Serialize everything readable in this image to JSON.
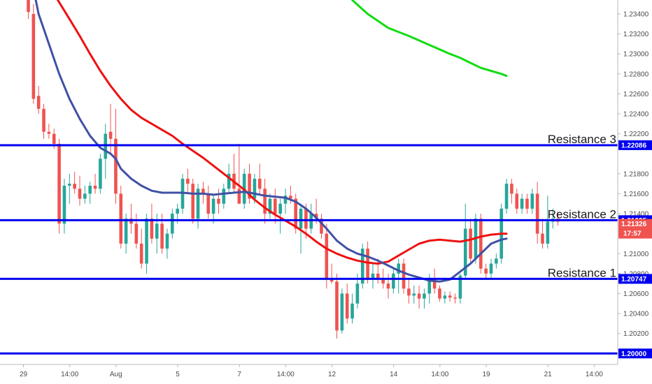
{
  "chart_data": {
    "type": "candlestick",
    "symbol_pair_precision": 5,
    "y_axis_ticks": [
      "1.23400",
      "1.23200",
      "1.23000",
      "1.22800",
      "1.22600",
      "1.22400",
      "1.22200",
      "1.21800",
      "1.21600",
      "1.21400",
      "1.21000",
      "1.20800",
      "1.20600",
      "1.20400",
      "1.20200"
    ],
    "y_axis_tick_values": [
      1.234,
      1.232,
      1.23,
      1.228,
      1.226,
      1.224,
      1.222,
      1.218,
      1.216,
      1.214,
      1.21,
      1.208,
      1.206,
      1.204,
      1.202
    ],
    "ylim": [
      1.1989,
      1.2354
    ],
    "x_axis_ticks": [
      {
        "label": "29",
        "bar": 0
      },
      {
        "label": "14:00",
        "bar": 9
      },
      {
        "label": "Aug",
        "bar": 18
      },
      {
        "label": "5",
        "bar": 30
      },
      {
        "label": "7",
        "bar": 42
      },
      {
        "label": "14:00",
        "bar": 51
      },
      {
        "label": "12",
        "bar": 60
      },
      {
        "label": "14",
        "bar": 72
      },
      {
        "label": "14:00",
        "bar": 81
      },
      {
        "label": "19",
        "bar": 90
      },
      {
        "label": "21",
        "bar": 102
      },
      {
        "label": "14:00",
        "bar": 111
      }
    ],
    "horizontal_levels": [
      {
        "name": "Resistance 3",
        "value": 1.22086,
        "badge": "1.22086"
      },
      {
        "name": "Resistance 2",
        "value": 1.21335,
        "badge": "1.21335"
      },
      {
        "name": "Resistance 1",
        "value": 1.20747,
        "badge": "1.20747"
      },
      {
        "name": "",
        "value": 1.2,
        "badge": "1.20000"
      }
    ],
    "price_badge": {
      "value": 1.21326,
      "label": "1.21326",
      "countdown": "17:57",
      "color": "#ef5350"
    },
    "colors": {
      "up": "#26a69a",
      "down": "#ef5350",
      "level": "#0000ee",
      "ma_fast": "#3f51a5",
      "ma_mid": "#ee1111",
      "ma_slow": "#11dd11"
    },
    "candles": [
      [
        1.2365,
        1.237,
        1.2335,
        1.2342
      ],
      [
        1.234,
        1.235,
        1.225,
        1.2255
      ],
      [
        1.2258,
        1.2268,
        1.224,
        1.2245
      ],
      [
        1.2245,
        1.225,
        1.2215,
        1.2222
      ],
      [
        1.2222,
        1.223,
        1.2215,
        1.222
      ],
      [
        1.222,
        1.2225,
        1.2205,
        1.221
      ],
      [
        1.221,
        1.2215,
        1.212,
        1.213
      ],
      [
        1.213,
        1.2175,
        1.212,
        1.2168
      ],
      [
        1.2168,
        1.218,
        1.215,
        1.217
      ],
      [
        1.217,
        1.2182,
        1.216,
        1.2165
      ],
      [
        1.2165,
        1.2178,
        1.2148,
        1.2155
      ],
      [
        1.2155,
        1.2168,
        1.215,
        1.216
      ],
      [
        1.216,
        1.2172,
        1.215,
        1.2168
      ],
      [
        1.2168,
        1.218,
        1.216,
        1.2165
      ],
      [
        1.2165,
        1.22,
        1.216,
        1.2195
      ],
      [
        1.2195,
        1.223,
        1.2175,
        1.222
      ],
      [
        1.2222,
        1.225,
        1.22,
        1.2215
      ],
      [
        1.2215,
        1.2245,
        1.215,
        1.216
      ],
      [
        1.216,
        1.2168,
        1.2105,
        1.211
      ],
      [
        1.211,
        1.214,
        1.21,
        1.2135
      ],
      [
        1.2135,
        1.215,
        1.212,
        1.213
      ],
      [
        1.213,
        1.214,
        1.2105,
        1.211
      ],
      [
        1.211,
        1.2125,
        1.2085,
        1.209
      ],
      [
        1.209,
        1.214,
        1.208,
        1.2135
      ],
      [
        1.2135,
        1.215,
        1.211,
        1.2115
      ],
      [
        1.2115,
        1.214,
        1.21,
        1.213
      ],
      [
        1.213,
        1.214,
        1.21,
        1.2105
      ],
      [
        1.2105,
        1.2125,
        1.2095,
        1.212
      ],
      [
        1.212,
        1.2145,
        1.2115,
        1.214
      ],
      [
        1.214,
        1.215,
        1.213,
        1.2145
      ],
      [
        1.2145,
        1.218,
        1.214,
        1.2175
      ],
      [
        1.2175,
        1.2185,
        1.216,
        1.217
      ],
      [
        1.217,
        1.2175,
        1.213,
        1.2135
      ],
      [
        1.2135,
        1.217,
        1.2125,
        1.2165
      ],
      [
        1.2165,
        1.2172,
        1.215,
        1.216
      ],
      [
        1.216,
        1.2168,
        1.2135,
        1.214
      ],
      [
        1.214,
        1.216,
        1.213,
        1.2155
      ],
      [
        1.2155,
        1.2165,
        1.214,
        1.215
      ],
      [
        1.215,
        1.217,
        1.2145,
        1.2165
      ],
      [
        1.2165,
        1.219,
        1.216,
        1.218
      ],
      [
        1.218,
        1.22,
        1.216,
        1.2165
      ],
      [
        1.2165,
        1.221,
        1.215,
        1.215
      ],
      [
        1.215,
        1.2185,
        1.2145,
        1.218
      ],
      [
        1.218,
        1.219,
        1.215,
        1.2155
      ],
      [
        1.2155,
        1.218,
        1.215,
        1.2175
      ],
      [
        1.2175,
        1.219,
        1.216,
        1.2165
      ],
      [
        1.2165,
        1.2175,
        1.213,
        1.214
      ],
      [
        1.214,
        1.216,
        1.2135,
        1.2155
      ],
      [
        1.2155,
        1.2165,
        1.213,
        1.214
      ],
      [
        1.214,
        1.2155,
        1.212,
        1.215
      ],
      [
        1.215,
        1.2165,
        1.214,
        1.2158
      ],
      [
        1.2158,
        1.2168,
        1.215,
        1.2155
      ],
      [
        1.2155,
        1.216,
        1.212,
        1.2125
      ],
      [
        1.2125,
        1.215,
        1.21,
        1.2145
      ],
      [
        1.2145,
        1.215,
        1.2115,
        1.2125
      ],
      [
        1.2125,
        1.215,
        1.212,
        1.214
      ],
      [
        1.214,
        1.2155,
        1.213,
        1.2135
      ],
      [
        1.2135,
        1.214,
        1.2115,
        1.212
      ],
      [
        1.212,
        1.213,
        1.2065,
        1.2075
      ],
      [
        1.2075,
        1.209,
        1.207,
        1.2072
      ],
      [
        1.2072,
        1.208,
        1.2015,
        1.2023
      ],
      [
        1.2023,
        1.2065,
        1.202,
        1.206
      ],
      [
        1.206,
        1.207,
        1.203,
        1.2035
      ],
      [
        1.2035,
        1.206,
        1.203,
        1.205
      ],
      [
        1.205,
        1.208,
        1.2045,
        1.207
      ],
      [
        1.207,
        1.211,
        1.2065,
        1.2105
      ],
      [
        1.2105,
        1.2112,
        1.207,
        1.2075
      ],
      [
        1.2075,
        1.209,
        1.2065,
        1.208
      ],
      [
        1.208,
        1.2095,
        1.207,
        1.2075
      ],
      [
        1.2075,
        1.2085,
        1.2065,
        1.207
      ],
      [
        1.207,
        1.208,
        1.2055,
        1.2065
      ],
      [
        1.2065,
        1.2085,
        1.206,
        1.208
      ],
      [
        1.208,
        1.2095,
        1.206,
        1.209
      ],
      [
        1.209,
        1.2095,
        1.206,
        1.2065
      ],
      [
        1.2065,
        1.2075,
        1.205,
        1.2058
      ],
      [
        1.2058,
        1.2068,
        1.205,
        1.206
      ],
      [
        1.206,
        1.2068,
        1.2045,
        1.2055
      ],
      [
        1.2055,
        1.2065,
        1.2045,
        1.206
      ],
      [
        1.206,
        1.208,
        1.205,
        1.2075
      ],
      [
        1.2075,
        1.2085,
        1.206,
        1.2065
      ],
      [
        1.2065,
        1.2068,
        1.2052,
        1.2055
      ],
      [
        1.2055,
        1.2062,
        1.205,
        1.2058
      ],
      [
        1.2058,
        1.2062,
        1.2052,
        1.2056
      ],
      [
        1.2056,
        1.206,
        1.205,
        1.2055
      ],
      [
        1.2055,
        1.208,
        1.205,
        1.2078
      ],
      [
        1.2078,
        1.215,
        1.2075,
        1.2125
      ],
      [
        1.2125,
        1.2135,
        1.209,
        1.2095
      ],
      [
        1.2095,
        1.214,
        1.209,
        1.2135
      ],
      [
        1.2135,
        1.214,
        1.208,
        1.2085
      ],
      [
        1.2085,
        1.209,
        1.2075,
        1.208
      ],
      [
        1.208,
        1.2095,
        1.2075,
        1.209
      ],
      [
        1.209,
        1.21,
        1.2085,
        1.2095
      ],
      [
        1.2095,
        1.215,
        1.209,
        1.2145
      ],
      [
        1.2145,
        1.2175,
        1.214,
        1.217
      ],
      [
        1.217,
        1.2175,
        1.215,
        1.216
      ],
      [
        1.216,
        1.2165,
        1.214,
        1.2145
      ],
      [
        1.2145,
        1.216,
        1.214,
        1.2155
      ],
      [
        1.2155,
        1.216,
        1.214,
        1.2145
      ],
      [
        1.2145,
        1.2165,
        1.214,
        1.216
      ],
      [
        1.216,
        1.2172,
        1.211,
        1.212
      ],
      [
        1.212,
        1.2135,
        1.2105,
        1.211
      ],
      [
        1.211,
        1.2158,
        1.2105,
        1.2132
      ],
      [
        1.2132,
        1.2145,
        1.2125,
        1.2135
      ],
      [
        1.2135,
        1.2142,
        1.2128,
        1.2132
      ]
    ],
    "ma_fast": [
      [
        1,
        1.2365
      ],
      [
        2,
        1.234
      ],
      [
        4,
        1.231
      ],
      [
        6,
        1.228
      ],
      [
        8,
        1.2255
      ],
      [
        10,
        1.2235
      ],
      [
        12,
        1.2218
      ],
      [
        14,
        1.2206
      ],
      [
        16,
        1.22
      ],
      [
        17,
        1.2195
      ],
      [
        18,
        1.2185
      ],
      [
        20,
        1.2175
      ],
      [
        22,
        1.2168
      ],
      [
        24,
        1.2163
      ],
      [
        26,
        1.2161
      ],
      [
        28,
        1.2161
      ],
      [
        30,
        1.2161
      ],
      [
        32,
        1.216
      ],
      [
        34,
        1.216
      ],
      [
        36,
        1.2159
      ],
      [
        38,
        1.216
      ],
      [
        40,
        1.2161
      ],
      [
        42,
        1.2162
      ],
      [
        44,
        1.216
      ],
      [
        46,
        1.2158
      ],
      [
        48,
        1.2157
      ],
      [
        50,
        1.2156
      ],
      [
        52,
        1.2152
      ],
      [
        54,
        1.2145
      ],
      [
        56,
        1.2136
      ],
      [
        58,
        1.2125
      ],
      [
        60,
        1.2113
      ],
      [
        62,
        1.2105
      ],
      [
        64,
        1.21
      ],
      [
        66,
        1.2097
      ],
      [
        68,
        1.2093
      ],
      [
        70,
        1.2088
      ],
      [
        72,
        1.2083
      ],
      [
        74,
        1.2079
      ],
      [
        76,
        1.2076
      ],
      [
        78,
        1.2073
      ],
      [
        80,
        1.2072
      ],
      [
        82,
        1.2074
      ],
      [
        84,
        1.2082
      ],
      [
        86,
        1.209
      ],
      [
        88,
        1.21
      ],
      [
        90,
        1.211
      ],
      [
        92,
        1.2114
      ],
      [
        93,
        1.2115
      ]
    ],
    "ma_mid": [
      [
        5,
        1.236
      ],
      [
        8,
        1.2335
      ],
      [
        10,
        1.2318
      ],
      [
        12,
        1.23
      ],
      [
        14,
        1.2283
      ],
      [
        16,
        1.2268
      ],
      [
        18,
        1.2255
      ],
      [
        20,
        1.2244
      ],
      [
        22,
        1.2236
      ],
      [
        24,
        1.223
      ],
      [
        26,
        1.2224
      ],
      [
        28,
        1.2218
      ],
      [
        30,
        1.221
      ],
      [
        32,
        1.2203
      ],
      [
        34,
        1.2196
      ],
      [
        36,
        1.2188
      ],
      [
        38,
        1.218
      ],
      [
        40,
        1.2172
      ],
      [
        42,
        1.2164
      ],
      [
        44,
        1.2154
      ],
      [
        46,
        1.2146
      ],
      [
        48,
        1.2139
      ],
      [
        50,
        1.2133
      ],
      [
        52,
        1.2127
      ],
      [
        54,
        1.212
      ],
      [
        56,
        1.2112
      ],
      [
        58,
        1.2105
      ],
      [
        60,
        1.21
      ],
      [
        62,
        1.2096
      ],
      [
        64,
        1.2093
      ],
      [
        66,
        1.2091
      ],
      [
        68,
        1.209
      ],
      [
        70,
        1.2092
      ],
      [
        72,
        1.2098
      ],
      [
        74,
        1.2104
      ],
      [
        76,
        1.211
      ],
      [
        78,
        1.2113
      ],
      [
        80,
        1.2114
      ],
      [
        82,
        1.2113
      ],
      [
        84,
        1.2112
      ],
      [
        86,
        1.2114
      ],
      [
        88,
        1.2117
      ],
      [
        90,
        1.2119
      ],
      [
        92,
        1.212
      ],
      [
        93,
        1.212
      ]
    ],
    "ma_slow": [
      [
        63,
        1.2354
      ],
      [
        66,
        1.234
      ],
      [
        70,
        1.2326
      ],
      [
        74,
        1.2318
      ],
      [
        78,
        1.2309
      ],
      [
        82,
        1.23
      ],
      [
        84,
        1.2296
      ],
      [
        86,
        1.2291
      ],
      [
        88,
        1.2286
      ],
      [
        90,
        1.2283
      ],
      [
        92,
        1.228
      ],
      [
        93,
        1.2278
      ]
    ]
  }
}
